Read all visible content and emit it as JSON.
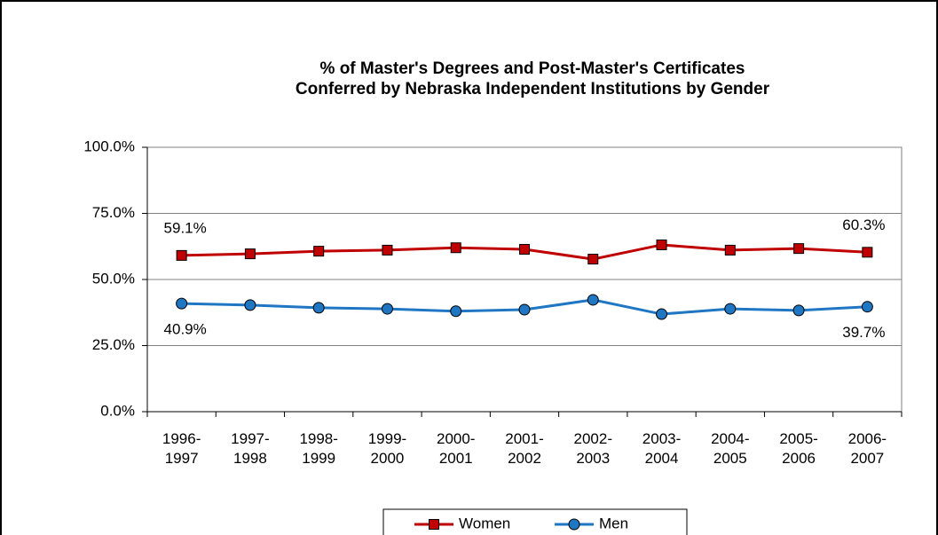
{
  "chart_data": {
    "type": "line",
    "title": [
      "% of Master's Degrees and Post-Master's Certificates",
      "Conferred by Nebraska Independent Institutions by Gender"
    ],
    "categories": [
      "1996-1997",
      "1997-1998",
      "1998-1999",
      "1999-2000",
      "2000-2001",
      "2001-2002",
      "2002-2003",
      "2003-2004",
      "2004-2005",
      "2005-2006",
      "2006-2007"
    ],
    "series": [
      {
        "name": "Women",
        "color": "#c00000",
        "marker": "square",
        "values": [
          59.1,
          59.7,
          60.7,
          61.1,
          62.0,
          61.4,
          57.7,
          63.1,
          61.1,
          61.7,
          60.3
        ],
        "value_labels": [
          "59.1%",
          null,
          null,
          null,
          null,
          null,
          null,
          null,
          null,
          null,
          "60.3%"
        ]
      },
      {
        "name": "Men",
        "color": "#1f77c4",
        "marker": "circle",
        "values": [
          40.9,
          40.3,
          39.3,
          38.9,
          38.0,
          38.6,
          42.3,
          36.9,
          38.9,
          38.3,
          39.7
        ],
        "value_labels": [
          "40.9%",
          null,
          null,
          null,
          null,
          null,
          null,
          null,
          null,
          null,
          "39.7%"
        ]
      }
    ],
    "ylim": [
      0,
      100
    ],
    "yticks": [
      {
        "value": 0,
        "label": "0.0%"
      },
      {
        "value": 25,
        "label": "25.0%"
      },
      {
        "value": 50,
        "label": "50.0%"
      },
      {
        "value": 75,
        "label": "75.0%"
      },
      {
        "value": 100,
        "label": "100.0%"
      }
    ],
    "grid": true,
    "legend": "bottom"
  }
}
